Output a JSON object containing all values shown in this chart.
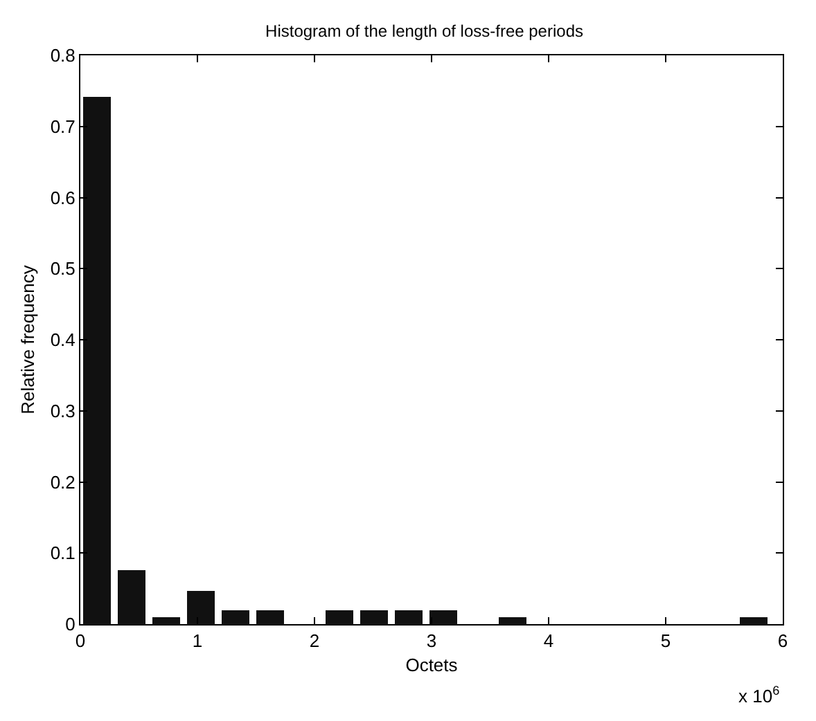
{
  "chart_data": {
    "type": "histogram",
    "title": "Histogram of the length of loss-free periods",
    "xlabel": "Octets",
    "ylabel": "Relative frequency",
    "annotations": [
      "x 10$^{6}$"
    ],
    "bins": [
      0,
      0.295,
      0.59,
      0.885,
      1.18,
      1.475,
      1.77,
      2.065,
      2.36,
      2.655,
      2.95,
      3.245,
      3.54,
      3.835,
      4.13,
      4.425,
      4.72,
      5.015,
      5.31,
      5.605,
      5.9
    ],
    "values": [
      0.742,
      0.075,
      0.01,
      0.046,
      0.019,
      0.019,
      0,
      0.019,
      0.019,
      0.019,
      0.019,
      0,
      0.01,
      0,
      0,
      0,
      0,
      0,
      0,
      0.01
    ],
    "color": "#111111",
    "xlim": [
      0,
      6
    ],
    "xticks": [
      0,
      1,
      2,
      3,
      4,
      5,
      6
    ],
    "ylim": [
      0,
      0.8
    ],
    "yticks": [
      0,
      0.1,
      0.2,
      0.3,
      0.4,
      0.5,
      0.6,
      0.7,
      0.8
    ]
  }
}
